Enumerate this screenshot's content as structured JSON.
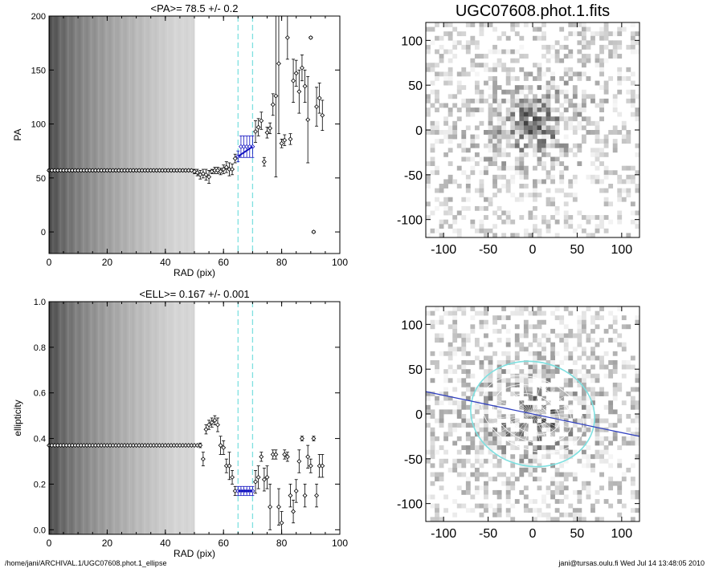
{
  "chart_data": [
    {
      "type": "scatter",
      "title": "<PA>=  78.5 +/-   0.2",
      "xlabel": "RAD (pix)",
      "ylabel": "PA",
      "xlim": [
        0,
        100
      ],
      "ylim": [
        -20,
        200
      ],
      "xticks": [
        0,
        20,
        40,
        60,
        80,
        100
      ],
      "yticks": [
        0,
        50,
        100,
        150,
        200
      ],
      "grid": false,
      "shaded_band_x": [
        0,
        50
      ],
      "reference_vlines_x": [
        65,
        70
      ],
      "reference_color": "#7fe0e0",
      "highlight_color": "#1010c0",
      "series": [
        {
          "x": [
            0,
            1,
            2,
            3,
            4,
            5,
            6,
            7,
            8,
            9,
            10,
            11,
            12,
            13,
            14,
            15,
            16,
            17,
            18,
            19,
            20,
            21,
            22,
            23,
            24,
            25,
            26,
            27,
            28,
            29,
            30,
            31,
            32,
            33,
            34,
            35,
            36,
            37,
            38,
            39,
            40,
            41,
            42,
            43,
            44,
            45,
            46,
            47,
            48,
            49,
            50,
            51,
            52,
            53,
            54,
            55,
            56,
            57,
            58,
            59,
            60,
            61,
            62,
            63,
            64,
            65,
            66,
            67,
            68,
            69,
            70,
            71,
            72,
            73,
            74,
            75,
            76,
            77,
            78,
            79,
            80,
            81,
            82,
            83,
            84,
            85,
            86,
            87,
            88,
            89,
            90,
            91,
            92,
            93,
            94
          ],
          "y": [
            57,
            57,
            57,
            57,
            57,
            57,
            57,
            57,
            57,
            57,
            57,
            57,
            57,
            57,
            57,
            57,
            57,
            57,
            57,
            57,
            57,
            57,
            57,
            57,
            57,
            57,
            57,
            57,
            57,
            57,
            57,
            57,
            57,
            57,
            57,
            57,
            57,
            57,
            57,
            57,
            57,
            57,
            57,
            57,
            57,
            57,
            57,
            57,
            57,
            57,
            56,
            55,
            53,
            54,
            53,
            51,
            56,
            57,
            57,
            56,
            58,
            60,
            58,
            58,
            68,
            70,
            79,
            79,
            79,
            79,
            79,
            93,
            97,
            103,
            65,
            92,
            96,
            118,
            126,
            156,
            82,
            85,
            180,
            86,
            140,
            147,
            130,
            152,
            135,
            104,
            180,
            0,
            116,
            124,
            108
          ],
          "err": [
            1,
            1,
            1,
            1,
            1,
            1,
            1,
            1,
            1,
            1,
            1,
            1,
            1,
            1,
            1,
            1,
            1,
            1,
            1,
            1,
            1,
            1,
            1,
            1,
            1,
            1,
            1,
            1,
            1,
            1,
            1,
            1,
            1,
            1,
            1,
            1,
            1,
            1,
            1,
            1,
            1,
            1,
            1,
            1,
            1,
            1,
            1,
            1,
            1,
            1,
            2,
            3,
            4,
            4,
            5,
            6,
            2,
            3,
            3,
            3,
            4,
            5,
            6,
            5,
            4,
            5,
            10,
            10,
            10,
            10,
            10,
            10,
            8,
            8,
            4,
            5,
            5,
            10,
            75,
            65,
            4,
            5,
            20,
            5,
            20,
            12,
            20,
            12,
            15,
            40,
            1,
            1,
            18,
            14,
            14
          ]
        }
      ]
    },
    {
      "type": "scatter",
      "title": "<ELL>= 0.167 +/-   0.001",
      "xlabel": "RAD (pix)",
      "ylabel": "ellipticity",
      "xlim": [
        0,
        100
      ],
      "ylim": [
        -0.02,
        1.0
      ],
      "xticks": [
        0,
        20,
        40,
        60,
        80,
        100
      ],
      "yticks": [
        0.0,
        0.2,
        0.4,
        0.6,
        0.8,
        1.0
      ],
      "grid": false,
      "shaded_band_x": [
        0,
        50
      ],
      "reference_vlines_x": [
        65,
        70
      ],
      "reference_color": "#7fe0e0",
      "highlight_color": "#1010c0",
      "series": [
        {
          "x": [
            0,
            1,
            2,
            3,
            4,
            5,
            6,
            7,
            8,
            9,
            10,
            11,
            12,
            13,
            14,
            15,
            16,
            17,
            18,
            19,
            20,
            21,
            22,
            23,
            24,
            25,
            26,
            27,
            28,
            29,
            30,
            31,
            32,
            33,
            34,
            35,
            36,
            37,
            38,
            39,
            40,
            41,
            42,
            43,
            44,
            45,
            46,
            47,
            48,
            49,
            50,
            51,
            52,
            53,
            54,
            55,
            56,
            57,
            58,
            59,
            60,
            61,
            62,
            63,
            64,
            65,
            66,
            67,
            68,
            69,
            70,
            71,
            72,
            73,
            74,
            75,
            76,
            77,
            78,
            79,
            80,
            81,
            82,
            83,
            84,
            85,
            86,
            87,
            88,
            89,
            90,
            91,
            92,
            93,
            94
          ],
          "y": [
            0.37,
            0.37,
            0.37,
            0.37,
            0.37,
            0.37,
            0.37,
            0.37,
            0.37,
            0.37,
            0.37,
            0.37,
            0.37,
            0.37,
            0.37,
            0.37,
            0.37,
            0.37,
            0.37,
            0.37,
            0.37,
            0.37,
            0.37,
            0.37,
            0.37,
            0.37,
            0.37,
            0.37,
            0.37,
            0.37,
            0.37,
            0.37,
            0.37,
            0.37,
            0.37,
            0.37,
            0.37,
            0.37,
            0.37,
            0.37,
            0.37,
            0.37,
            0.37,
            0.37,
            0.37,
            0.37,
            0.37,
            0.37,
            0.37,
            0.37,
            0.37,
            0.37,
            0.37,
            0.31,
            0.44,
            0.46,
            0.47,
            0.48,
            0.46,
            0.37,
            0.36,
            0.28,
            0.28,
            0.23,
            0.17,
            0.17,
            0.17,
            0.17,
            0.17,
            0.17,
            0.17,
            0.21,
            0.23,
            0.32,
            0.22,
            0.23,
            0.1,
            0.33,
            0.33,
            0.1,
            0.03,
            0.33,
            0.32,
            0.15,
            0.08,
            0.17,
            0.3,
            0.4,
            0.15,
            0.32,
            0.28,
            0.4,
            0.15,
            0.28,
            0.28
          ],
          "err": [
            0.003,
            0.003,
            0.003,
            0.003,
            0.003,
            0.003,
            0.003,
            0.003,
            0.003,
            0.003,
            0.003,
            0.003,
            0.003,
            0.003,
            0.003,
            0.003,
            0.003,
            0.003,
            0.003,
            0.003,
            0.003,
            0.003,
            0.003,
            0.003,
            0.003,
            0.003,
            0.003,
            0.003,
            0.003,
            0.003,
            0.003,
            0.003,
            0.003,
            0.003,
            0.003,
            0.003,
            0.003,
            0.003,
            0.003,
            0.003,
            0.003,
            0.003,
            0.003,
            0.003,
            0.003,
            0.003,
            0.003,
            0.003,
            0.003,
            0.003,
            0.003,
            0.003,
            0.01,
            0.03,
            0.02,
            0.02,
            0.02,
            0.02,
            0.03,
            0.04,
            0.03,
            0.03,
            0.06,
            0.03,
            0.02,
            0.02,
            0.02,
            0.02,
            0.02,
            0.02,
            0.02,
            0.05,
            0.05,
            0.02,
            0.05,
            0.05,
            0.1,
            0.02,
            0.02,
            0.08,
            0.05,
            0.02,
            0.02,
            0.05,
            0.05,
            0.05,
            0.05,
            0.01,
            0.05,
            0.05,
            0.03,
            0.01,
            0.05,
            0.05,
            0.05
          ]
        }
      ]
    },
    {
      "type": "heatmap",
      "title": "UGC07608.phot.1.fits",
      "xlabel": "",
      "ylabel": "",
      "xlim": [
        -120,
        120
      ],
      "ylim": [
        -120,
        120
      ],
      "xticks": [
        -100,
        -50,
        0,
        50,
        100
      ],
      "yticks": [
        -100,
        -50,
        0,
        50,
        100
      ],
      "colormap": "grayscale (dark = bright)",
      "galaxy_center": [
        0,
        5
      ],
      "galaxy_pa_deg": 30,
      "galaxy_axes": [
        58,
        44
      ]
    },
    {
      "type": "heatmap",
      "title": "",
      "xlabel": "",
      "ylabel": "",
      "xlim": [
        -120,
        120
      ],
      "ylim": [
        -120,
        120
      ],
      "xticks": [
        -100,
        -50,
        0,
        50,
        100
      ],
      "yticks": [
        -100,
        -50,
        0,
        50,
        100
      ],
      "colormap": "grayscale with masked regions (white)",
      "overlays": {
        "ellipse_center": [
          0,
          0
        ],
        "ellipse_semimajor": 70,
        "ellipse_ellipticity": 0.167,
        "ellipse_pa_deg": 78.5,
        "ellipse_color": "#7fe0e0",
        "line_color": "#3040c0",
        "line_endpoints": [
          [
            -120,
            25
          ],
          [
            120,
            -25
          ]
        ]
      }
    }
  ],
  "footer": {
    "left": "/home/jani/ARCHIVAL.1/UGC07608.phot.1_ellipse",
    "right": "jani@tursas.oulu.fi  Wed Jul 14 13:48:05 2010"
  }
}
